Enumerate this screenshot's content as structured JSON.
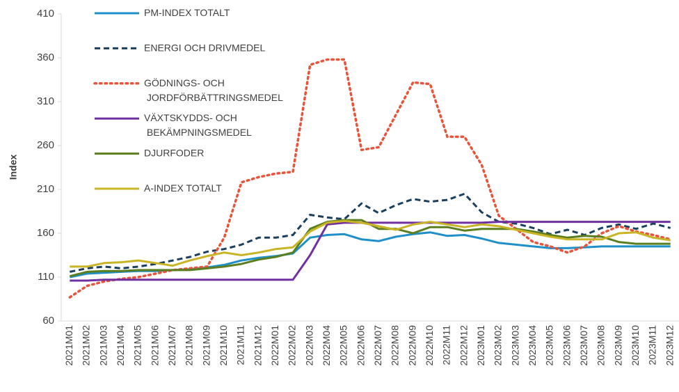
{
  "chart_data": {
    "type": "line",
    "y_label": "Index",
    "categories": [
      "2021M01",
      "2021M02",
      "2021M03",
      "2021M04",
      "2021M05",
      "2021M06",
      "2021M07",
      "2021M08",
      "2021M09",
      "2021M10",
      "2021M11",
      "2021M12",
      "2022M01",
      "2022M02",
      "2022M03",
      "2022M04",
      "2022M05",
      "2022M06",
      "2022M07",
      "2022M08",
      "2022M09",
      "2022M10",
      "2022M11",
      "2022M12",
      "2023M01",
      "2023M02",
      "2023M03",
      "2023M04",
      "2023M05",
      "2023M06",
      "2023M07",
      "2023M08",
      "2023M09",
      "2023M10",
      "2023M11",
      "2023M12"
    ],
    "ylim": [
      60,
      410
    ],
    "yticks": [
      60,
      110,
      160,
      210,
      260,
      310,
      360,
      410
    ],
    "grid": false,
    "series": [
      {
        "name": "PM-INDEX TOTALT",
        "color": "#1f8fc9",
        "dash": "solid",
        "values": [
          110,
          114,
          115,
          116,
          117,
          117,
          118,
          119,
          121,
          124,
          129,
          132,
          134,
          137,
          155,
          158,
          159,
          153,
          151,
          156,
          159,
          161,
          157,
          158,
          154,
          149,
          147,
          145,
          143,
          143,
          144,
          145,
          145,
          145,
          145,
          145
        ]
      },
      {
        "name": "ENERGI OCH DRIVMEDEL",
        "color": "#1b3f5e",
        "dash": "dashed",
        "values": [
          116,
          120,
          122,
          120,
          122,
          125,
          129,
          133,
          139,
          142,
          147,
          155,
          155,
          158,
          181,
          178,
          176,
          194,
          183,
          192,
          199,
          196,
          198,
          205,
          184,
          173,
          171,
          166,
          159,
          164,
          158,
          166,
          170,
          165,
          171,
          166
        ]
      },
      {
        "name": "GÖDNINGS- OCH JORDFÖRBÄTTRINGSMEDEL",
        "color": "#e8533b",
        "dash": "dotted",
        "values": [
          87,
          100,
          105,
          108,
          110,
          114,
          118,
          120,
          122,
          155,
          218,
          224,
          228,
          230,
          352,
          358,
          358,
          255,
          258,
          295,
          332,
          330,
          270,
          270,
          238,
          180,
          165,
          150,
          145,
          138,
          145,
          160,
          168,
          162,
          158,
          153
        ]
      },
      {
        "name": "VÄXTSKYDDS- OCH BEKÄMPNINGSMEDEL",
        "color": "#7030a0",
        "dash": "solid",
        "values": [
          106,
          106,
          107,
          107,
          107,
          107,
          107,
          107,
          107,
          107,
          107,
          107,
          107,
          107,
          135,
          170,
          172,
          172,
          172,
          172,
          172,
          172,
          172,
          172,
          172,
          173,
          173,
          173,
          173,
          173,
          173,
          173,
          173,
          173,
          173,
          173
        ]
      },
      {
        "name": "DJURFODER",
        "color": "#5b7f1f",
        "dash": "solid",
        "values": [
          111,
          116,
          117,
          117,
          118,
          118,
          118,
          118,
          120,
          122,
          125,
          130,
          133,
          138,
          165,
          173,
          175,
          175,
          165,
          165,
          160,
          167,
          167,
          163,
          165,
          165,
          165,
          162,
          158,
          155,
          157,
          156,
          150,
          148,
          148,
          148
        ]
      },
      {
        "name": "A-INDEX TOTALT",
        "color": "#c9b425",
        "dash": "solid",
        "values": [
          122,
          122,
          126,
          127,
          129,
          126,
          123,
          129,
          134,
          138,
          135,
          138,
          142,
          144,
          162,
          172,
          174,
          172,
          168,
          164,
          170,
          173,
          170,
          167,
          170,
          168,
          164,
          160,
          156,
          153,
          153,
          153,
          160,
          161,
          155,
          152
        ]
      }
    ]
  }
}
